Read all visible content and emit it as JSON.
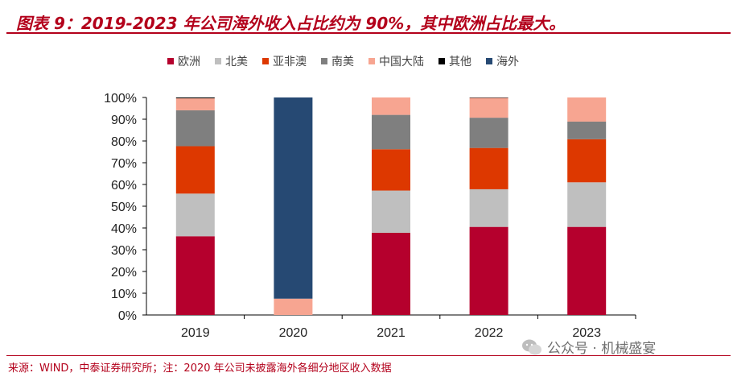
{
  "header": {
    "title": "图表 9：2019-2023 年公司海外收入占比约为 90%，其中欧洲占比最大。"
  },
  "footer": {
    "source": "来源：WIND，中泰证券研究所；注：2020 年公司未披露海外各细分地区收入数据",
    "watermark": "公众号 · 机械盛宴"
  },
  "colors": {
    "accent": "#b3001b"
  },
  "chart_data": {
    "type": "bar",
    "stacked": true,
    "categories": [
      "2019",
      "2020",
      "2021",
      "2022",
      "2023"
    ],
    "ylim": [
      0,
      100
    ],
    "yticks": [
      "0%",
      "10%",
      "20%",
      "30%",
      "40%",
      "50%",
      "60%",
      "70%",
      "80%",
      "90%",
      "100%"
    ],
    "legend_position": "top",
    "series": [
      {
        "name": "欧洲",
        "color": "#b5002d",
        "values": [
          36.2,
          0,
          37.8,
          40.5,
          40.5
        ]
      },
      {
        "name": "北美",
        "color": "#bfbfbf",
        "values": [
          19.6,
          0,
          19.4,
          17.3,
          20.5
        ]
      },
      {
        "name": "亚非澳",
        "color": "#dd3800",
        "values": [
          21.8,
          0,
          19.0,
          19.0,
          19.8
        ]
      },
      {
        "name": "南美",
        "color": "#7f7f7f",
        "values": [
          16.5,
          0,
          15.8,
          13.9,
          8.1
        ]
      },
      {
        "name": "中国大陆",
        "color": "#f7a591",
        "values": [
          5.5,
          7.5,
          8.0,
          9.1,
          11.1
        ]
      },
      {
        "name": "其他",
        "color": "#000000",
        "values": [
          0.4,
          0,
          0,
          0.2,
          0
        ]
      },
      {
        "name": "海外",
        "color": "#264973",
        "values": [
          0,
          92.5,
          0,
          0,
          0
        ]
      }
    ]
  }
}
